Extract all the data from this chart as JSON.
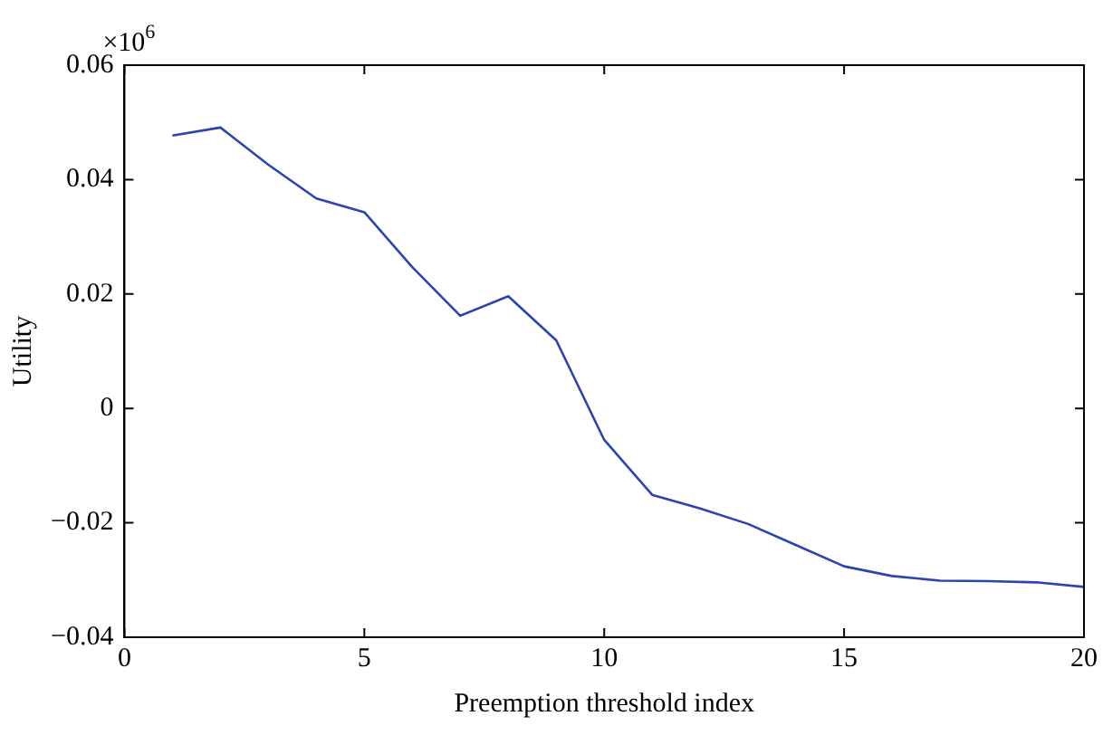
{
  "chart_data": {
    "type": "line",
    "xlabel": "Preemption threshold index",
    "ylabel": "Utility",
    "annotations": [
      "×10$^{6}$"
    ],
    "x": [
      1,
      2,
      3,
      4,
      5,
      6,
      7,
      8,
      9,
      10,
      11,
      12,
      13,
      14,
      15,
      16,
      17,
      18,
      19,
      20
    ],
    "series": [
      {
        "color": "#2a44b0",
        "values": [
          0.0477,
          0.0491,
          0.0426,
          0.0367,
          0.0343,
          0.0247,
          0.0162,
          0.0196,
          0.0119,
          -0.0055,
          -0.0151,
          -0.0175,
          -0.0202,
          -0.0239,
          -0.0276,
          -0.0293,
          -0.0301,
          -0.0302,
          -0.0304,
          -0.0312
        ]
      }
    ],
    "xlim": [
      0,
      20
    ],
    "xticks": [
      0,
      5,
      10,
      15,
      20
    ],
    "ylim": [
      -0.04,
      0.06
    ],
    "yticks": [
      -0.04,
      -0.02,
      0,
      0.02,
      0.04,
      0.06
    ],
    "grid": false,
    "legend": false,
    "marker": "none",
    "line_style": "solid"
  }
}
